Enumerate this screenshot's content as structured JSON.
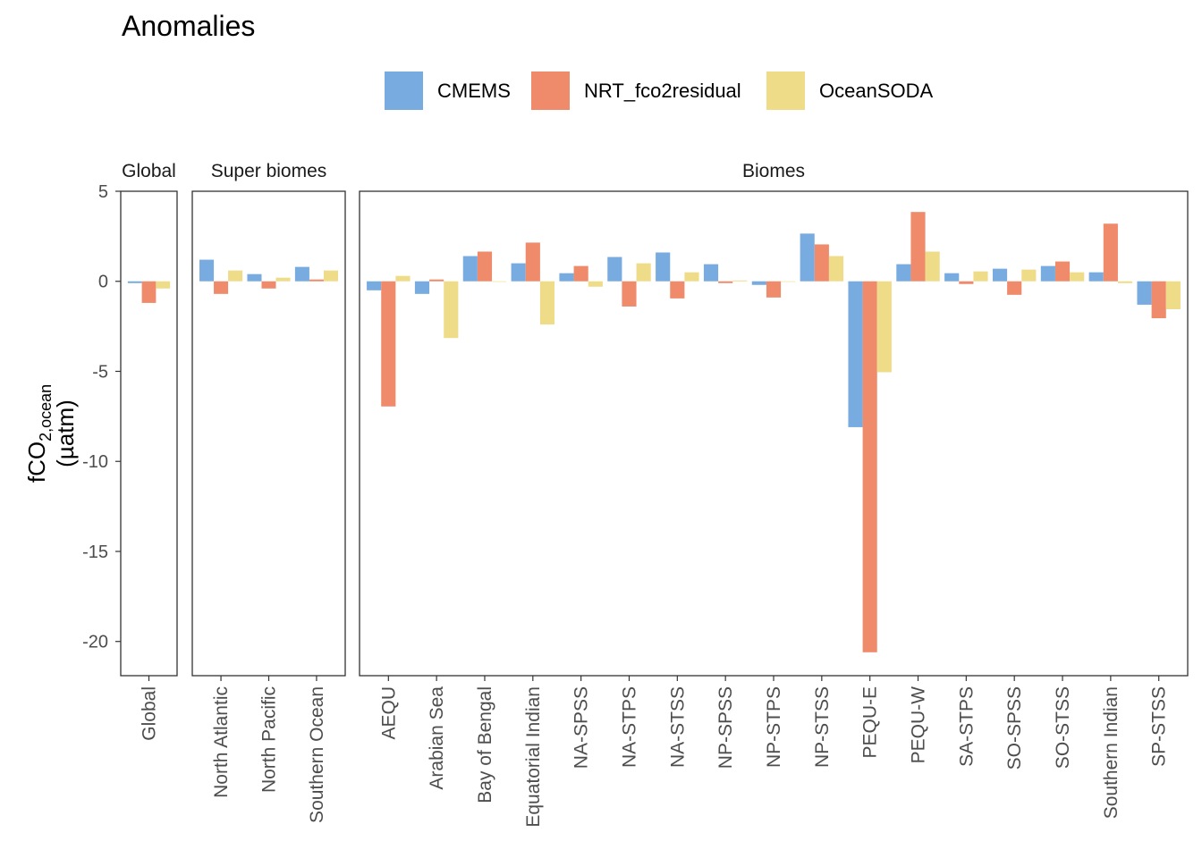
{
  "chart_data": {
    "type": "bar",
    "title": "Anomalies",
    "ylabel": {
      "main": "fCO",
      "sub": "2,ocean",
      "unit": "(µatm)"
    },
    "ylim": [
      -21.9,
      5
    ],
    "yticks": [
      5,
      0,
      -5,
      -10,
      -15,
      -20
    ],
    "ytick_labels": [
      "5",
      "0",
      "-5",
      "-10",
      "-15",
      "-20"
    ],
    "legend": {
      "placement": "top",
      "entries": [
        {
          "name": "CMEMS",
          "color": "#78ABDF"
        },
        {
          "name": "NRT_fco2residual",
          "color": "#EF8B6B"
        },
        {
          "name": "OceanSODA",
          "color": "#EEDC89"
        }
      ]
    },
    "panels": [
      {
        "strip": "Global",
        "categories": [
          "Global"
        ],
        "series": [
          {
            "name": "CMEMS",
            "values": [
              -0.1
            ]
          },
          {
            "name": "NRT_fco2residual",
            "values": [
              -1.2
            ]
          },
          {
            "name": "OceanSODA",
            "values": [
              -0.4
            ]
          }
        ]
      },
      {
        "strip": "Super biomes",
        "categories": [
          "North Atlantic",
          "North Pacific",
          "Southern Ocean"
        ],
        "series": [
          {
            "name": "CMEMS",
            "values": [
              1.2,
              0.4,
              0.8
            ]
          },
          {
            "name": "NRT_fco2residual",
            "values": [
              -0.7,
              -0.4,
              0.1
            ]
          },
          {
            "name": "OceanSODA",
            "values": [
              0.6,
              0.2,
              0.6
            ]
          }
        ]
      },
      {
        "strip": "Biomes",
        "categories": [
          "AEQU",
          "Arabian Sea",
          "Bay of Bengal",
          "Equatorial Indian",
          "NA-SPSS",
          "NA-STPS",
          "NA-STSS",
          "NP-SPSS",
          "NP-STPS",
          "NP-STSS",
          "PEQU-E",
          "PEQU-W",
          "SA-STPS",
          "SO-SPSS",
          "SO-STSS",
          "Southern Indian",
          "SP-STSS"
        ],
        "series": [
          {
            "name": "CMEMS",
            "values": [
              -0.5,
              -0.7,
              1.4,
              1.0,
              0.45,
              1.35,
              1.6,
              0.95,
              -0.2,
              2.65,
              -8.1,
              0.95,
              0.45,
              0.7,
              0.85,
              0.5,
              -1.3
            ]
          },
          {
            "name": "NRT_fco2residual",
            "values": [
              -6.95,
              0.1,
              1.65,
              2.15,
              0.85,
              -1.4,
              -0.95,
              -0.1,
              -0.9,
              2.05,
              -20.6,
              3.85,
              -0.15,
              -0.75,
              1.1,
              3.2,
              -2.05
            ]
          },
          {
            "name": "OceanSODA",
            "values": [
              0.3,
              -3.15,
              0.0,
              -2.4,
              -0.3,
              1.0,
              0.5,
              0.05,
              0.0,
              1.4,
              -5.05,
              1.65,
              0.55,
              0.65,
              0.5,
              -0.1,
              -1.55
            ]
          }
        ]
      }
    ]
  }
}
